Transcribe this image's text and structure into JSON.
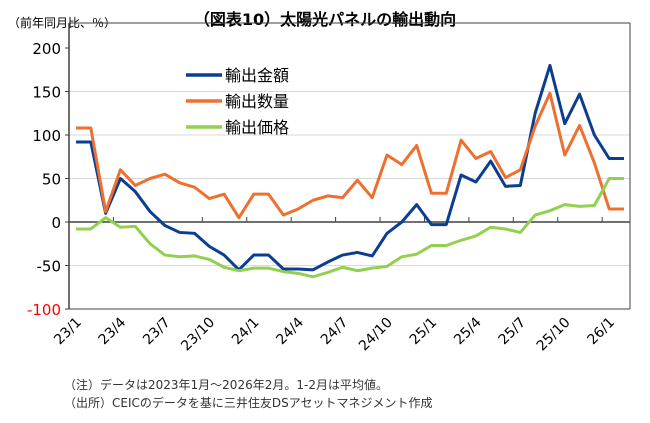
{
  "chart_data": {
    "type": "line",
    "title": "（図表10）太陽光パネルの輸出動向",
    "ylabel": "（前年同月比、％）",
    "ylim": [
      -100,
      200
    ],
    "yticks": [
      200,
      150,
      100,
      50,
      0,
      -50,
      -100
    ],
    "negative_tick_color": "#FF0000",
    "grid": true,
    "legend": "top-left",
    "x": [
      "23/1",
      "23/2",
      "23/3",
      "23/4",
      "23/5",
      "23/6",
      "23/7",
      "23/8",
      "23/9",
      "23/10",
      "23/11",
      "23/12",
      "24/1",
      "24/2",
      "24/3",
      "24/4",
      "24/5",
      "24/6",
      "24/7",
      "24/8",
      "24/9",
      "24/10",
      "24/11",
      "24/12",
      "25/1",
      "25/2",
      "25/3",
      "25/4",
      "25/5",
      "25/6",
      "25/7",
      "25/8",
      "25/9",
      "25/10",
      "25/11",
      "25/12",
      "26/1",
      "26/2"
    ],
    "xtick_labels": [
      "23/1",
      "23/4",
      "23/7",
      "23/10",
      "24/1",
      "24/4",
      "24/7",
      "24/10",
      "25/1",
      "25/4",
      "25/7",
      "25/10",
      "26/1"
    ],
    "series": [
      {
        "name": "輸出金額",
        "color": "#0B3E91",
        "values": [
          92,
          92,
          10,
          50,
          35,
          12,
          -4,
          -12,
          -13,
          -28,
          -38,
          -55,
          -38,
          -38,
          -54,
          -54,
          -55,
          -46,
          -38,
          -35,
          -39,
          -13,
          0,
          20,
          -3,
          -3,
          54,
          46,
          70,
          41,
          42,
          125,
          180,
          113,
          147,
          100,
          73,
          73
        ]
      },
      {
        "name": "輸出数量",
        "color": "#ED7030",
        "values": [
          108,
          108,
          12,
          60,
          42,
          50,
          55,
          45,
          40,
          27,
          32,
          5,
          32,
          32,
          8,
          15,
          25,
          30,
          28,
          48,
          28,
          77,
          66,
          88,
          33,
          33,
          94,
          73,
          81,
          51,
          60,
          110,
          148,
          77,
          111,
          68,
          15,
          15
        ]
      },
      {
        "name": "輸出価格",
        "color": "#92D050",
        "values": [
          -8,
          -8,
          5,
          -6,
          -5,
          -25,
          -38,
          -40,
          -39,
          -43,
          -52,
          -56,
          -53,
          -53,
          -57,
          -59,
          -63,
          -58,
          -52,
          -56,
          -53,
          -51,
          -40,
          -37,
          -27,
          -27,
          -21,
          -16,
          -6,
          -8,
          -12,
          8,
          13,
          20,
          18,
          19,
          50,
          50
        ]
      }
    ]
  },
  "notes": [
    "（注）データは2023年1月～2026年2月。1-2月は平均値。",
    "（出所）CEICのデータを基に三井住友DSアセットマネジメント作成"
  ]
}
